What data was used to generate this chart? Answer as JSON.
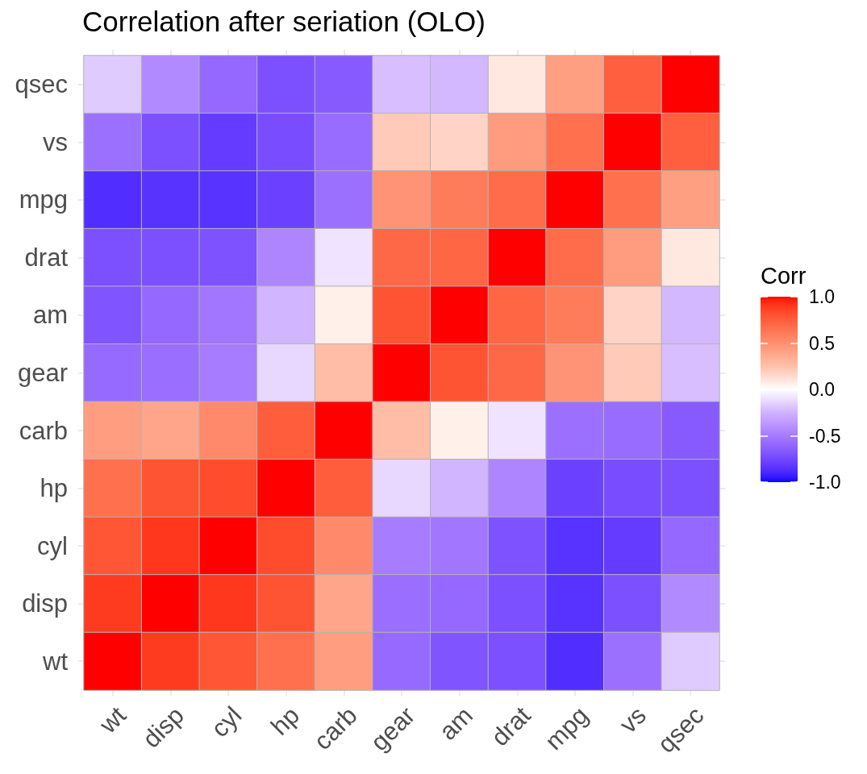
{
  "chart_data": {
    "type": "heatmap",
    "title": "Correlation after seriation (OLO)",
    "categories": [
      "wt",
      "disp",
      "cyl",
      "hp",
      "carb",
      "gear",
      "am",
      "drat",
      "mpg",
      "vs",
      "qsec"
    ],
    "y_categories": [
      "qsec",
      "vs",
      "mpg",
      "drat",
      "am",
      "gear",
      "carb",
      "hp",
      "cyl",
      "disp",
      "wt"
    ],
    "cells": [
      [
        -0.17,
        -0.43,
        -0.59,
        -0.71,
        -0.66,
        -0.21,
        -0.23,
        0.09,
        0.42,
        0.74,
        1
      ],
      [
        -0.55,
        -0.71,
        -0.81,
        -0.72,
        -0.57,
        0.21,
        0.17,
        0.44,
        0.66,
        1,
        0.74
      ],
      [
        -0.87,
        -0.85,
        -0.85,
        -0.78,
        -0.55,
        0.48,
        0.6,
        0.68,
        1,
        0.66,
        0.42
      ],
      [
        -0.71,
        -0.71,
        -0.7,
        -0.45,
        -0.09,
        0.7,
        0.71,
        1,
        0.68,
        0.44,
        0.09
      ],
      [
        -0.69,
        -0.59,
        -0.52,
        -0.24,
        0.06,
        0.79,
        1,
        0.71,
        0.6,
        0.17,
        -0.23
      ],
      [
        -0.58,
        -0.56,
        -0.49,
        -0.13,
        0.27,
        1,
        0.79,
        0.7,
        0.48,
        0.21,
        -0.21
      ],
      [
        0.43,
        0.39,
        0.53,
        0.75,
        1,
        0.27,
        0.06,
        -0.09,
        -0.55,
        -0.57,
        -0.66
      ],
      [
        0.66,
        0.79,
        0.83,
        1,
        0.75,
        -0.13,
        -0.24,
        -0.45,
        -0.78,
        -0.72,
        -0.71
      ],
      [
        0.78,
        0.9,
        1,
        0.83,
        0.53,
        -0.49,
        -0.52,
        -0.7,
        -0.85,
        -0.81,
        -0.59
      ],
      [
        0.89,
        1,
        0.9,
        0.79,
        0.39,
        -0.56,
        -0.59,
        -0.71,
        -0.85,
        -0.71,
        -0.43
      ],
      [
        1,
        0.89,
        0.78,
        0.66,
        0.43,
        -0.58,
        -0.69,
        -0.71,
        -0.87,
        -0.55,
        -0.17
      ]
    ],
    "clabel": "Corr",
    "clim": [
      -1,
      1
    ],
    "cticks": [
      {
        "value": -1,
        "label": "-1.0"
      },
      {
        "value": -0.5,
        "label": "-0.5"
      },
      {
        "value": 0,
        "label": "0.0"
      },
      {
        "value": 0.5,
        "label": "0.5"
      },
      {
        "value": 1,
        "label": "1.0"
      }
    ],
    "colors": [
      "#0000ff",
      "#7247ff",
      "#a57aff",
      "#d0b2ff",
      "#ffffff",
      "#ffc0ab",
      "#ff8f70",
      "#ff5d3c",
      "#ff0000"
    ],
    "grid": true
  }
}
